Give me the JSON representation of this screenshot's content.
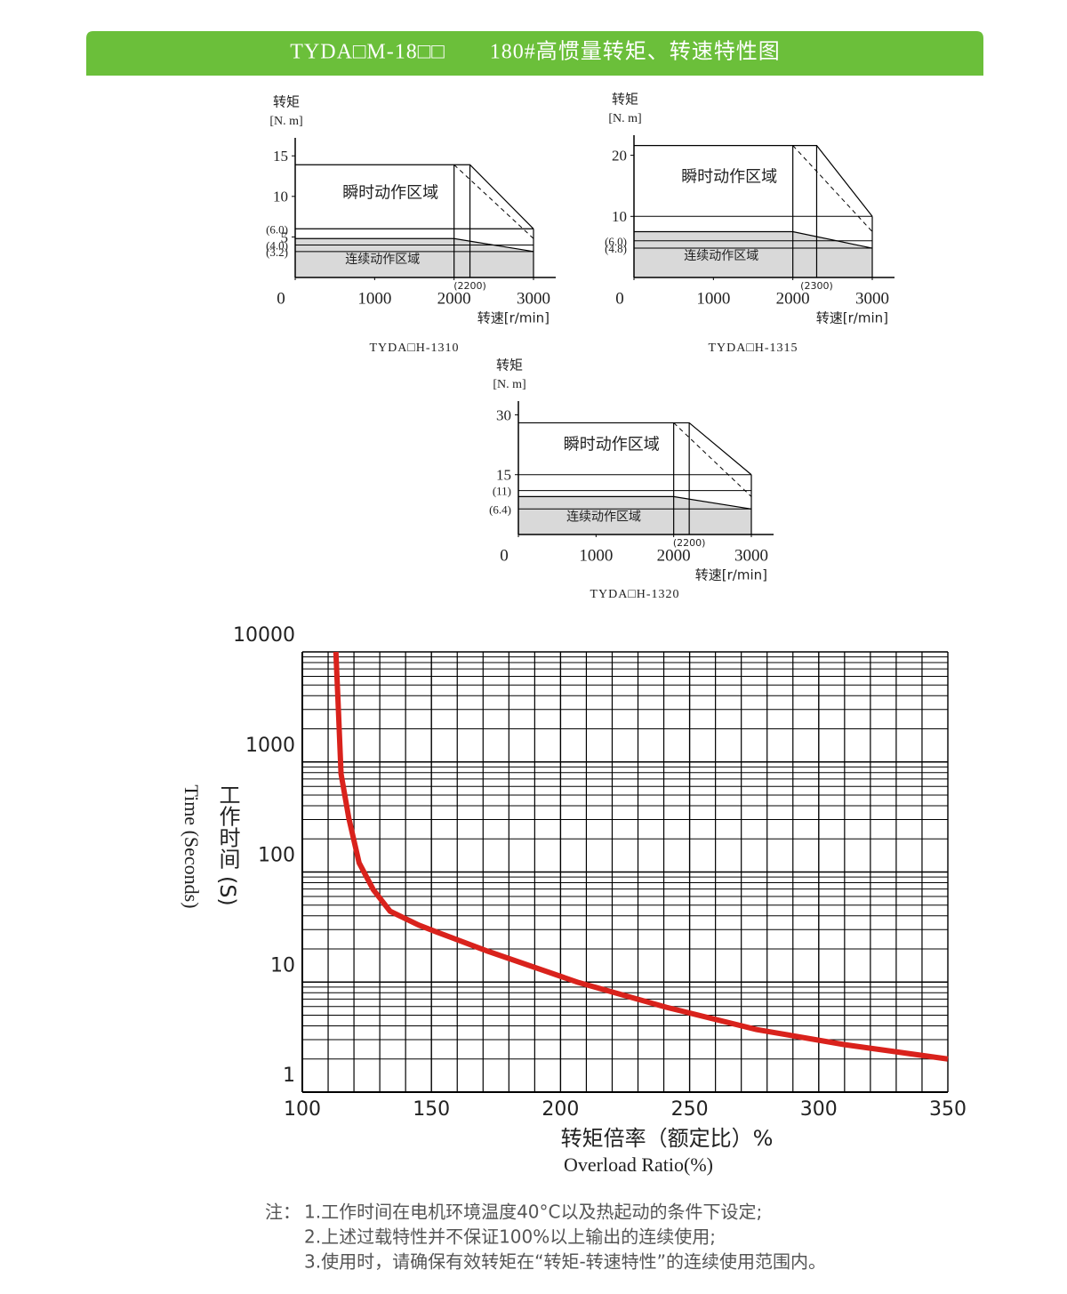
{
  "header": {
    "title": "TYDA□M-18□□　　180#高惯量转矩、转速特性图"
  },
  "chart_data": [
    {
      "type": "area",
      "title": "TYDA□H-1310",
      "ylabel": "转矩",
      "yunit": "[N. m]",
      "xlabel": "转速[r/min]",
      "xlim": [
        0,
        3000
      ],
      "ylim": [
        0,
        17
      ],
      "xticks": [
        0,
        1000,
        2000,
        3000
      ],
      "yticks": [
        {
          "value": 3.2,
          "label": "(3.2)"
        },
        {
          "value": 4,
          "label": "(4.0)"
        },
        5,
        {
          "value": 6,
          "label": "(6.0)"
        },
        10,
        15
      ],
      "annotation": {
        "text": "(2200)",
        "x": 2200
      },
      "series": [
        {
          "name": "瞬时动作区域",
          "color": "#000000",
          "x": [
            0,
            2200,
            3000
          ],
          "values": [
            13.9,
            13.9,
            6
          ]
        },
        {
          "name": "连续动作区域",
          "color": "#d9d9d9",
          "x": [
            0,
            2000,
            3000
          ],
          "values": [
            4.8,
            4.8,
            3.2
          ]
        }
      ]
    },
    {
      "type": "area",
      "title": "TYDA□H-1315",
      "ylabel": "转矩",
      "yunit": "[N. m]",
      "xlabel": "转速[r/min]",
      "xlim": [
        0,
        3000
      ],
      "ylim": [
        0,
        23
      ],
      "xticks": [
        0,
        1000,
        2000,
        3000
      ],
      "yticks": [
        {
          "value": 4.8,
          "label": "(4.8)"
        },
        {
          "value": 6,
          "label": "(6.0)"
        },
        10,
        20
      ],
      "annotation": {
        "text": "(2300)",
        "x": 2300
      },
      "series": [
        {
          "name": "瞬时动作区域",
          "color": "#000000",
          "x": [
            0,
            2300,
            3000
          ],
          "values": [
            21.6,
            21.6,
            10
          ]
        },
        {
          "name": "连续动作区域",
          "color": "#d9d9d9",
          "x": [
            0,
            2000,
            3000
          ],
          "values": [
            7.5,
            7.5,
            4.8
          ]
        }
      ]
    },
    {
      "type": "area",
      "title": "TYDA□H-1320",
      "ylabel": "转矩",
      "yunit": "[N. m]",
      "xlabel": "转速[r/min]",
      "xlim": [
        0,
        3000
      ],
      "ylim": [
        0,
        33
      ],
      "xticks": [
        0,
        1000,
        2000,
        3000
      ],
      "yticks": [
        {
          "value": 6.4,
          "label": "(6.4)"
        },
        {
          "value": 11,
          "label": "(11)"
        },
        15,
        30
      ],
      "annotation": {
        "text": "(2200)",
        "x": 2200
      },
      "series": [
        {
          "name": "瞬时动作区域",
          "color": "#000000",
          "x": [
            0,
            2200,
            3000
          ],
          "values": [
            28,
            28,
            15
          ]
        },
        {
          "name": "连续动作区域",
          "color": "#d9d9d9",
          "x": [
            0,
            2000,
            3000
          ],
          "values": [
            9.5,
            9.5,
            6.4
          ]
        }
      ]
    },
    {
      "type": "line",
      "logy": true,
      "grid": true,
      "ylabel": "工作时间 (S)",
      "ylabel_en": "Time (Seconds)",
      "xlabel": "转矩倍率（额定比）%",
      "xlabel_en": "Overload Ratio(%)",
      "xlim": [
        100,
        350
      ],
      "ylim": [
        1,
        10000
      ],
      "xticks": [
        100,
        150,
        200,
        250,
        300,
        350
      ],
      "yticks": [
        1,
        10,
        100,
        1000,
        10000
      ],
      "color": "#d9221c",
      "x": [
        113,
        114,
        115,
        118,
        122,
        127.5,
        134,
        145,
        152,
        172,
        207,
        241,
        276,
        310,
        350
      ],
      "values": [
        10000,
        2880,
        780,
        309,
        121,
        69,
        44,
        33,
        28.5,
        19,
        9.9,
        5.9,
        3.7,
        2.7,
        2.0
      ]
    }
  ],
  "notes": {
    "label": "注：",
    "lines": [
      "1.工作时间在电机环境温度40°C以及热起动的条件下设定;",
      "2.上述过载特性并不保证100%以上输出的连续使用;",
      "3.使用时，请确保有效转矩在“转矩-转速特性”的连续使用范围内。"
    ]
  }
}
